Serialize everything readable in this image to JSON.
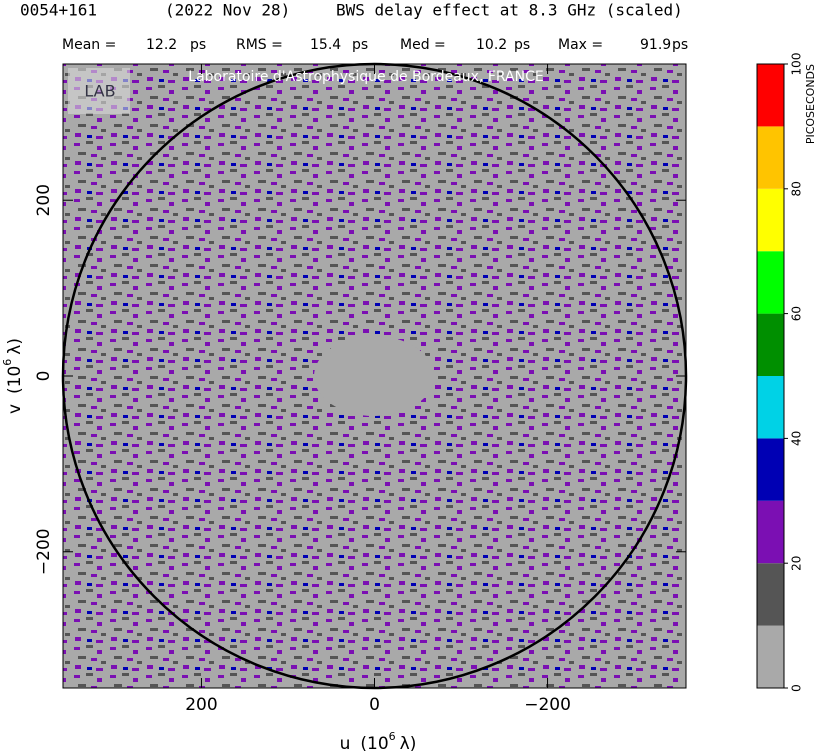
{
  "chart_data": {
    "type": "heatmap",
    "title": [
      "0054+161",
      "(2022 Nov 28)",
      "BWS delay effect at  8.3 GHz (scaled)"
    ],
    "stats": [
      {
        "label": "Mean =",
        "value": 12.2,
        "unit": "ps"
      },
      {
        "label": "RMS =",
        "value": 15.4,
        "unit": "ps"
      },
      {
        "label": "Med =",
        "value": 10.2,
        "unit": "ps"
      },
      {
        "label": "Max =",
        "value": 91.9,
        "unit": "ps"
      }
    ],
    "watermark": "Laboratoire d'Astrophysique de Bordeaux, FRANCE",
    "xlabel": [
      "u",
      "(10",
      "6",
      "λ)"
    ],
    "ylabel": [
      "v",
      "(10",
      "6",
      "λ)"
    ],
    "xlim": [
      360,
      -360
    ],
    "ylim": [
      -355,
      355
    ],
    "xticks": [
      200,
      0,
      {
        "value": -200,
        "label": "−200"
      }
    ],
    "yticks": [
      {
        "value": -200,
        "label": "−200"
      },
      0,
      200
    ],
    "colorbar": {
      "label": "PICOSECONDS",
      "bins": [
        0,
        10,
        20,
        30,
        40,
        50,
        60,
        70,
        80,
        90,
        100
      ],
      "colors": [
        "#a9a9a9",
        "#555555",
        "#7b0fb3",
        "#0000b4",
        "#00d2e6",
        "#008f00",
        "#00ff00",
        "#ffff00",
        "#ffc400",
        "#ff0000"
      ],
      "ticks": [
        0,
        20,
        40,
        60,
        80,
        100
      ]
    }
  }
}
